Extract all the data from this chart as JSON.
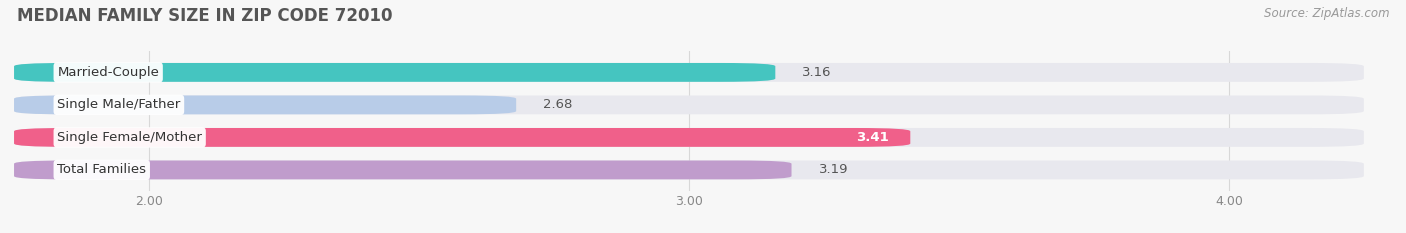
{
  "title": "MEDIAN FAMILY SIZE IN ZIP CODE 72010",
  "source": "Source: ZipAtlas.com",
  "categories": [
    "Married-Couple",
    "Single Male/Father",
    "Single Female/Mother",
    "Total Families"
  ],
  "values": [
    3.16,
    2.68,
    3.41,
    3.19
  ],
  "bar_colors": [
    "#45c5c0",
    "#b8cce8",
    "#f0608a",
    "#c09ccc"
  ],
  "bar_bg_color": "#e8e8ee",
  "xlim": [
    1.75,
    4.25
  ],
  "xticks": [
    2.0,
    3.0,
    4.0
  ],
  "xtick_labels": [
    "2.00",
    "3.00",
    "4.00"
  ],
  "label_fontsize": 9.5,
  "value_fontsize": 9.5,
  "title_fontsize": 12,
  "source_fontsize": 8.5,
  "background_color": "#f7f7f7",
  "bar_height": 0.58,
  "highlight_index": 2,
  "highlight_value_color": "#ffffff",
  "normal_value_color": "#555555",
  "label_color": "#333333",
  "grid_color": "#d8d8d8",
  "tick_color": "#888888"
}
